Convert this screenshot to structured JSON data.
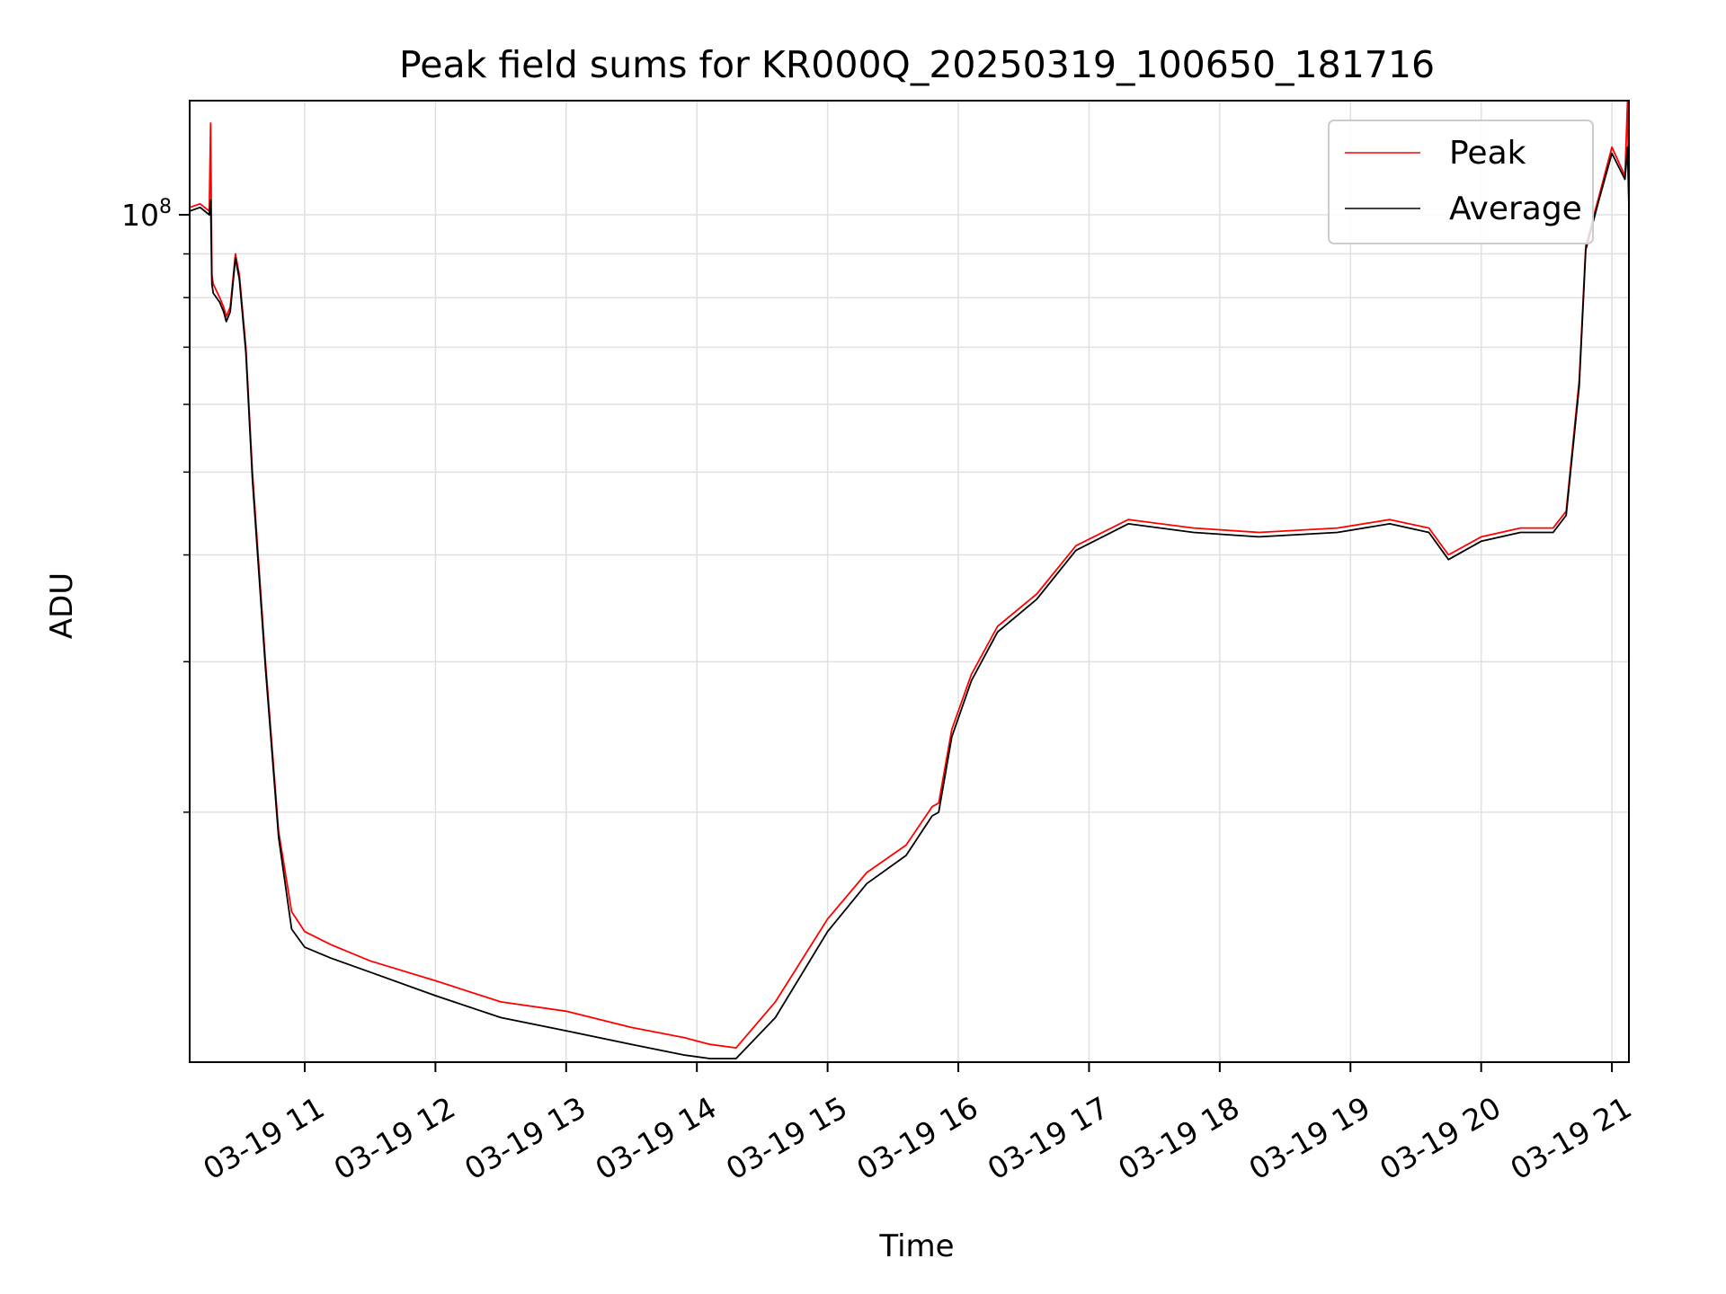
{
  "chart_data": {
    "type": "line",
    "title": "Peak field sums for KR000Q_20250319_100650_181716",
    "xlabel": "Time",
    "ylabel": "ADU",
    "yscale": "log",
    "grid": true,
    "legend_position": "top-right",
    "x_unit": "hours (2025-03-19, local clock)",
    "xlim": [
      10.12,
      21.13
    ],
    "ylim": [
      10200000,
      136000000
    ],
    "x_ticks": [
      {
        "value": 11,
        "label": "03-19 11"
      },
      {
        "value": 12,
        "label": "03-19 12"
      },
      {
        "value": 13,
        "label": "03-19 13"
      },
      {
        "value": 14,
        "label": "03-19 14"
      },
      {
        "value": 15,
        "label": "03-19 15"
      },
      {
        "value": 16,
        "label": "03-19 16"
      },
      {
        "value": 17,
        "label": "03-19 17"
      },
      {
        "value": 18,
        "label": "03-19 18"
      },
      {
        "value": 19,
        "label": "03-19 19"
      },
      {
        "value": 20,
        "label": "03-19 20"
      },
      {
        "value": 21,
        "label": "03-19 21"
      }
    ],
    "y_major_ticks": [
      {
        "value": 100000000,
        "base": "10",
        "exp": "8"
      }
    ],
    "y_minor_ticks": [
      20000000,
      30000000,
      40000000,
      50000000,
      60000000,
      70000000,
      80000000,
      90000000
    ],
    "series": [
      {
        "name": "Peak",
        "color": "#ff0000",
        "x": [
          10.12,
          10.2,
          10.27,
          10.28,
          10.29,
          10.3,
          10.35,
          10.38,
          10.4,
          10.43,
          10.47,
          10.5,
          10.55,
          10.6,
          10.7,
          10.8,
          10.9,
          11.0,
          11.2,
          11.5,
          12.0,
          12.5,
          13.0,
          13.5,
          13.9,
          14.1,
          14.3,
          14.6,
          15.0,
          15.3,
          15.6,
          15.8,
          15.85,
          15.95,
          16.1,
          16.3,
          16.6,
          16.9,
          17.3,
          17.8,
          18.3,
          18.9,
          19.3,
          19.6,
          19.75,
          20.0,
          20.3,
          20.55,
          20.65,
          20.75,
          20.8,
          20.9,
          21.0,
          21.1,
          21.12,
          21.13
        ],
        "y": [
          102000000,
          103000000,
          101000000,
          128000000,
          85000000,
          83000000,
          80000000,
          78000000,
          76000000,
          78000000,
          90000000,
          85000000,
          70000000,
          50000000,
          30000000,
          19000000,
          15300000,
          14500000,
          14000000,
          13400000,
          12700000,
          12000000,
          11700000,
          11200000,
          10900000,
          10700000,
          10600000,
          12000000,
          15000000,
          17000000,
          18300000,
          20300000,
          20500000,
          25000000,
          29000000,
          33000000,
          36000000,
          41000000,
          44000000,
          43000000,
          42500000,
          43000000,
          44000000,
          43000000,
          40000000,
          42000000,
          43000000,
          43000000,
          45000000,
          64000000,
          92000000,
          105000000,
          120000000,
          111000000,
          136000000,
          103000000
        ]
      },
      {
        "name": "Average",
        "color": "#000000",
        "x": [
          10.12,
          10.2,
          10.27,
          10.28,
          10.29,
          10.3,
          10.35,
          10.38,
          10.4,
          10.43,
          10.47,
          10.5,
          10.55,
          10.6,
          10.7,
          10.8,
          10.9,
          11.0,
          11.2,
          11.5,
          12.0,
          12.5,
          13.0,
          13.5,
          13.9,
          14.1,
          14.3,
          14.6,
          15.0,
          15.3,
          15.6,
          15.8,
          15.85,
          15.95,
          16.1,
          16.3,
          16.6,
          16.9,
          17.3,
          17.8,
          18.3,
          18.9,
          19.3,
          19.6,
          19.75,
          20.0,
          20.3,
          20.55,
          20.65,
          20.75,
          20.8,
          20.9,
          21.0,
          21.1,
          21.12,
          21.13
        ],
        "y": [
          101000000,
          102000000,
          100000000,
          104000000,
          83000000,
          81000000,
          79000000,
          77000000,
          75000000,
          77000000,
          89000000,
          84000000,
          69000000,
          49000000,
          29500000,
          18700000,
          14600000,
          13900000,
          13500000,
          13000000,
          12200000,
          11500000,
          11100000,
          10700000,
          10400000,
          10300000,
          10300000,
          11500000,
          14500000,
          16500000,
          17800000,
          19800000,
          20000000,
          24500000,
          28500000,
          32500000,
          35500000,
          40500000,
          43500000,
          42500000,
          42000000,
          42500000,
          43500000,
          42500000,
          39500000,
          41500000,
          42500000,
          42500000,
          44500000,
          63000000,
          91000000,
          104000000,
          118000000,
          110000000,
          120000000,
          102000000
        ]
      }
    ]
  }
}
